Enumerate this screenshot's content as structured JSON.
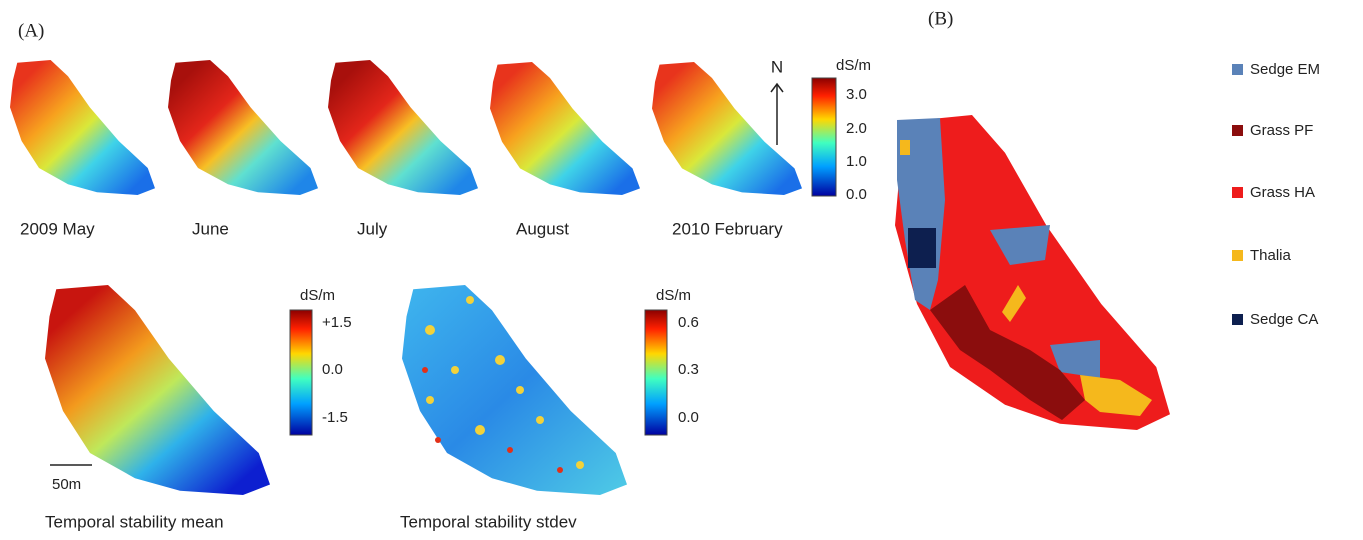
{
  "panel_a": {
    "label": "(A)",
    "months": [
      "2009 May",
      "June",
      "July",
      "August",
      "2010 February"
    ],
    "north": "N",
    "monthly_colorbar": {
      "unit": "dS/m",
      "ticks": [
        "3.0",
        "2.0",
        "1.0",
        "0.0"
      ]
    },
    "mean": {
      "caption": "Temporal stability mean",
      "unit": "dS/m",
      "ticks": [
        "+1.5",
        "0.0",
        "-1.5"
      ],
      "scale": "50m"
    },
    "stdev": {
      "caption": "Temporal stability stdev",
      "unit": "dS/m",
      "ticks": [
        "0.6",
        "0.3",
        "0.0"
      ]
    }
  },
  "panel_b": {
    "label": "(B)",
    "legend": [
      "Sedge EM",
      "Grass PF",
      "Grass HA",
      "Thalia",
      "Sedge CA"
    ]
  }
}
